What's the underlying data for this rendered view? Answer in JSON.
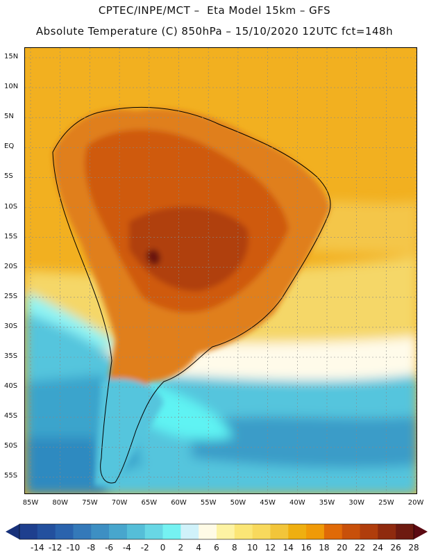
{
  "header": {
    "title_line1": "CPTEC/INPE/MCT –  Eta Model 15km – GFS",
    "title_line2": "Absolute Temperature (C) 850hPa – 15/10/2020 12UTC fct=148h"
  },
  "map": {
    "lat_labels": [
      "15N",
      "10N",
      "5N",
      "EQ",
      "5S",
      "10S",
      "15S",
      "20S",
      "25S",
      "30S",
      "35S",
      "40S",
      "45S",
      "50S",
      "55S"
    ],
    "lon_labels": [
      "85W",
      "80W",
      "75W",
      "70W",
      "65W",
      "60W",
      "55W",
      "50W",
      "45W",
      "40W",
      "35W",
      "30W",
      "25W",
      "20W"
    ],
    "ocean_colors": {
      "tropical": "#f2b020",
      "subtropical": "#f5d768",
      "cold_front": "#fffbea",
      "cool_ocean": "#55c5dd",
      "cold_ocean": "#3aa4cc",
      "cyan_band": "#5ef3f3",
      "deep_cold": "#2f8ac0"
    },
    "land_colors": {
      "hot": "#cf5a10",
      "very_hot": "#b0400c",
      "extreme": "#6a1810"
    }
  },
  "colorbar": {
    "labels": [
      "-14",
      "-12",
      "-10",
      "-8",
      "-6",
      "-4",
      "-2",
      "0",
      "2",
      "4",
      "6",
      "8",
      "10",
      "12",
      "14",
      "16",
      "18",
      "20",
      "22",
      "24",
      "26",
      "28"
    ],
    "colors": [
      "#1e3f8e",
      "#23509e",
      "#2a63ad",
      "#3479b9",
      "#3d8fc3",
      "#48a6cd",
      "#55bed8",
      "#68d7e5",
      "#75f2f2",
      "#d0f2fa",
      "#fffbe6",
      "#fdf3a3",
      "#fbe676",
      "#f8d95d",
      "#f2c53a",
      "#efaf10",
      "#f09a08",
      "#e06a08",
      "#c8500a",
      "#b03d0c",
      "#8f2a0e",
      "#6e1a10"
    ],
    "under_color": "#17317a",
    "over_color": "#5c0a12"
  }
}
